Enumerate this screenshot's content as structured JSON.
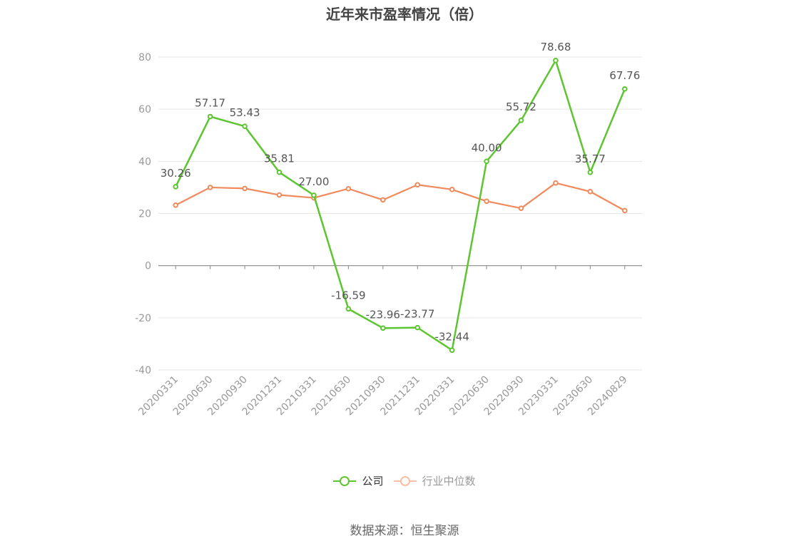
{
  "chart_data": {
    "type": "line",
    "title": "近年来市盈率情况（倍）",
    "categories": [
      "20200331",
      "20200630",
      "20200930",
      "20201231",
      "20210331",
      "20210630",
      "20210930",
      "20211231",
      "20220331",
      "20220630",
      "20220930",
      "20230331",
      "20230630",
      "20240829"
    ],
    "series": [
      {
        "name": "公司",
        "color": "#5cc530",
        "values": [
          30.26,
          57.17,
          53.43,
          35.81,
          27.0,
          -16.59,
          -23.96,
          -23.77,
          -32.44,
          40.0,
          55.72,
          78.68,
          35.77,
          67.76
        ],
        "labels": [
          "30.26",
          "57.17",
          "53.43",
          "35.81",
          "27.00",
          "-16.59",
          "-23.96",
          "-23.77",
          "-32.44",
          "40.00",
          "55.72",
          "78.68",
          "35.77",
          "67.76"
        ]
      },
      {
        "name": "行业中位数",
        "color": "#f08a5d",
        "legend_color": "#f7bfa4",
        "values": [
          23.2,
          30.0,
          29.6,
          27.1,
          26.0,
          29.5,
          25.2,
          31.0,
          29.2,
          24.7,
          22.0,
          31.7,
          28.4,
          21.1
        ]
      }
    ],
    "yticks": [
      "80",
      "60",
      "40",
      "20",
      "0",
      "-20",
      "-40"
    ],
    "ylim": [
      -40,
      80
    ],
    "grid": true,
    "legend_position": "bottom-center"
  },
  "source": "数据来源：恒生聚源"
}
